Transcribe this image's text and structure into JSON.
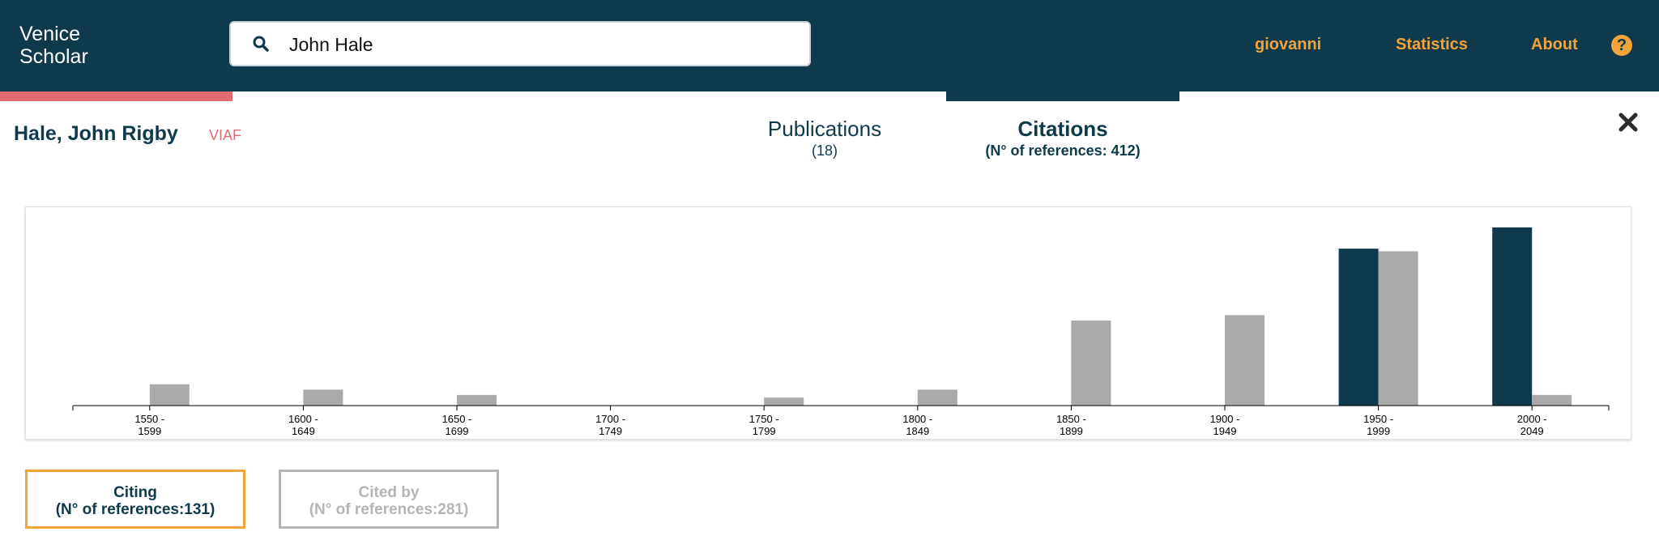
{
  "brand": {
    "line1": "Venice",
    "line2": "Scholar"
  },
  "search": {
    "value": "John Hale",
    "icon": "search-icon"
  },
  "nav": {
    "user": "giovanni",
    "statistics": "Statistics",
    "about": "About",
    "help": "?"
  },
  "progress": {
    "fraction": 0.14
  },
  "author": {
    "name": "Hale, John Rigby",
    "viaf": "VIAF"
  },
  "tabs": {
    "publications": {
      "title": "Publications",
      "sub": "(18)"
    },
    "citations": {
      "title": "Citations",
      "sub": "(N° of references: 412)"
    }
  },
  "colors": {
    "dark": "#0f3a4c",
    "accent": "#f2a33a",
    "highlight": "#e06b72",
    "grey": "#aaaaaa"
  },
  "chart_data": {
    "type": "bar",
    "categories": [
      [
        "1550 -",
        "1599"
      ],
      [
        "1600 -",
        "1649"
      ],
      [
        "1650 -",
        "1699"
      ],
      [
        "1700 -",
        "1749"
      ],
      [
        "1750 -",
        "1799"
      ],
      [
        "1800 -",
        "1849"
      ],
      [
        "1850 -",
        "1899"
      ],
      [
        "1900 -",
        "1949"
      ],
      [
        "1950 -",
        "1999"
      ],
      [
        "2000 -",
        "2049"
      ]
    ],
    "series": [
      {
        "values": [
          0,
          0,
          0,
          0,
          0,
          0,
          0,
          0,
          59,
          67
        ],
        "color": "#0f3a4c"
      },
      {
        "values": [
          8,
          6,
          4,
          0,
          3,
          6,
          32,
          34,
          58,
          4
        ],
        "color": "#aaaaaa"
      }
    ],
    "ylim": [
      0,
      70
    ],
    "grid": false
  },
  "filters": {
    "citing": {
      "line1": "Citing",
      "line2": "(N° of references:131)"
    },
    "cited_by": {
      "line1": "Cited by",
      "line2": "(N° of references:281)"
    }
  }
}
